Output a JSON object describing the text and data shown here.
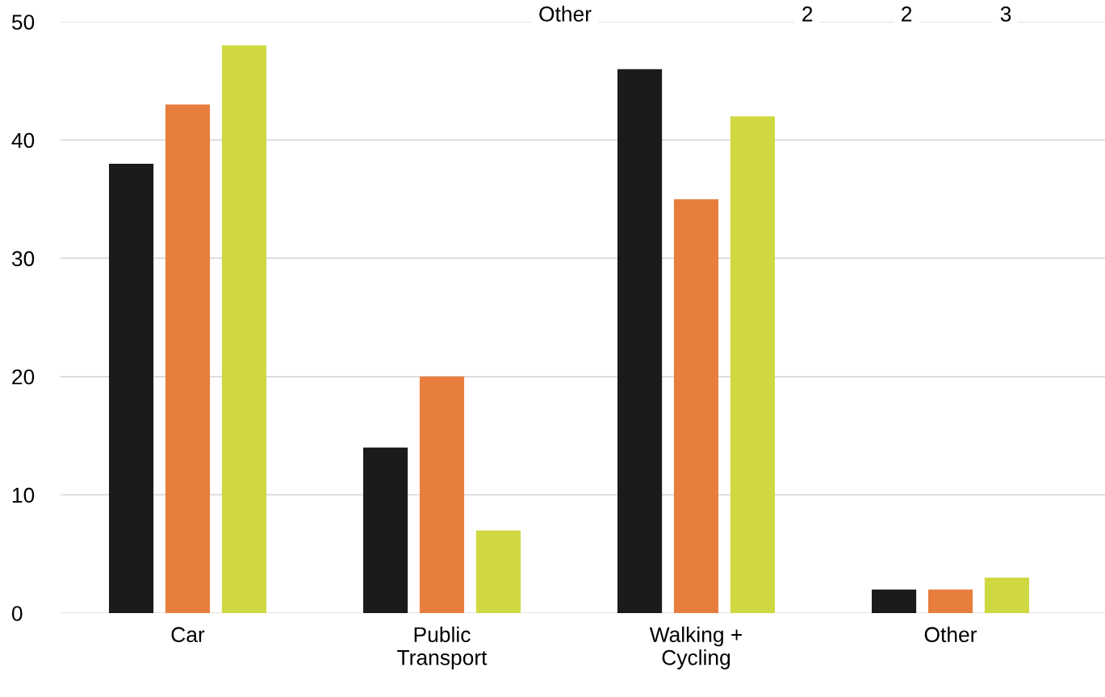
{
  "chart_data": {
    "type": "bar",
    "categories": [
      "Car",
      "Public\nTransport",
      "Walking +\nCycling",
      "Other"
    ],
    "series": [
      {
        "color": "#1b1b1b",
        "values": [
          38,
          14,
          46,
          2
        ]
      },
      {
        "color": "#e87e3e",
        "values": [
          43,
          20,
          35,
          2
        ]
      },
      {
        "color": "#cfd841",
        "values": [
          48,
          7,
          42,
          3
        ]
      }
    ],
    "ylim": [
      0,
      50
    ],
    "yticks": [
      0,
      10,
      20,
      30,
      40,
      50
    ],
    "grid": "y",
    "legend": false,
    "annotations": [
      "Other",
      "2",
      "2",
      "3"
    ]
  }
}
